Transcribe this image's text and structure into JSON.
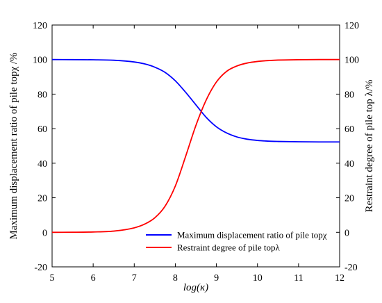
{
  "chart_data": {
    "type": "line",
    "xlabel": "log(κ)",
    "ylabel_left": "Maximum displacement ratio of pile topχ /%",
    "ylabel_right": "Restraint degree of pile top λ/%",
    "xlim": [
      5,
      12
    ],
    "ylim": [
      -20,
      120
    ],
    "x_ticks": [
      "5",
      "6",
      "7",
      "8",
      "9",
      "10",
      "11",
      "12"
    ],
    "y_ticks": [
      "-20",
      "0",
      "20",
      "40",
      "60",
      "80",
      "100",
      "120"
    ],
    "grid": false,
    "legend_position": "bottom-right",
    "series": [
      {
        "name": "Maximum displacement ratio of pile topχ",
        "color": "#0000ff",
        "x": [
          5.0,
          5.5,
          6.0,
          6.5,
          7.0,
          7.25,
          7.5,
          7.75,
          8.0,
          8.25,
          8.5,
          8.75,
          9.0,
          9.25,
          9.5,
          9.75,
          10.0,
          10.25,
          10.5,
          11.0,
          11.5,
          12.0
        ],
        "y": [
          100.0,
          99.97,
          99.88,
          99.6,
          98.6,
          97.5,
          95.6,
          92.6,
          87.7,
          81.1,
          73.8,
          66.6,
          61.1,
          57.5,
          55.2,
          53.9,
          53.2,
          52.8,
          52.6,
          52.4,
          52.3,
          52.3
        ]
      },
      {
        "name": "Restraint degree of pile topλ",
        "color": "#ff0000",
        "x": [
          5.0,
          5.5,
          6.0,
          6.5,
          7.0,
          7.25,
          7.5,
          7.75,
          8.0,
          8.25,
          8.5,
          8.75,
          9.0,
          9.25,
          9.5,
          9.75,
          10.0,
          10.25,
          10.5,
          11.0,
          11.5,
          12.0
        ],
        "y": [
          0.0,
          0.05,
          0.2,
          0.7,
          2.6,
          4.7,
          8.4,
          15.1,
          26.8,
          43.9,
          61.8,
          76.5,
          87.0,
          93.2,
          96.3,
          98.0,
          98.9,
          99.4,
          99.7,
          99.9,
          100.0,
          100.0
        ]
      }
    ]
  }
}
